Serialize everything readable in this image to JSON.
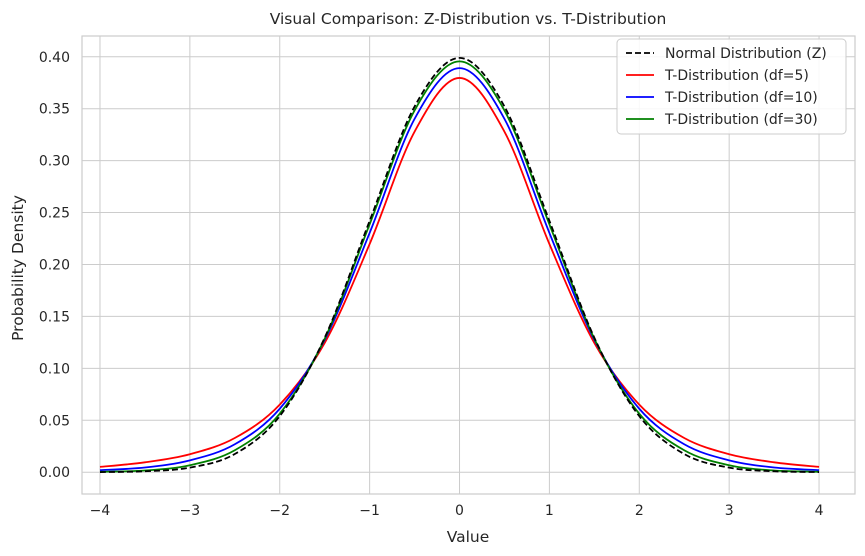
{
  "chart_data": {
    "type": "line",
    "title": "Visual Comparison: Z-Distribution vs. T-Distribution",
    "xlabel": "Value",
    "ylabel": "Probability Density",
    "xlim": [
      -4.2,
      4.4
    ],
    "ylim": [
      -0.021,
      0.42
    ],
    "xticks": [
      -4,
      -3,
      -2,
      -1,
      0,
      1,
      2,
      3,
      4
    ],
    "xtick_labels": [
      "−4",
      "−3",
      "−2",
      "−1",
      "0",
      "1",
      "2",
      "3",
      "4"
    ],
    "yticks": [
      0.0,
      0.05,
      0.1,
      0.15,
      0.2,
      0.25,
      0.3,
      0.35,
      0.4
    ],
    "ytick_labels": [
      "0.00",
      "0.05",
      "0.10",
      "0.15",
      "0.20",
      "0.25",
      "0.30",
      "0.35",
      "0.40"
    ],
    "grid": true,
    "legend_position": "top-right",
    "x": [
      -4.0,
      -3.5,
      -3.0,
      -2.5,
      -2.0,
      -1.5,
      -1.0,
      -0.5,
      0.0,
      0.5,
      1.0,
      1.5,
      2.0,
      2.5,
      3.0,
      3.5,
      4.0
    ],
    "series": [
      {
        "name": "Normal Distribution (Z)",
        "color": "#000000",
        "dash": "dashed",
        "values": [
          0.0001,
          0.0009,
          0.0044,
          0.0175,
          0.054,
          0.1295,
          0.242,
          0.3521,
          0.3989,
          0.3521,
          0.242,
          0.1295,
          0.054,
          0.0175,
          0.0044,
          0.0009,
          0.0001
        ]
      },
      {
        "name": "T-Distribution (df=5)",
        "color": "#ff0000",
        "dash": "solid",
        "values": [
          0.0051,
          0.0095,
          0.0173,
          0.0329,
          0.0651,
          0.1245,
          0.2197,
          0.3279,
          0.3796,
          0.3279,
          0.2197,
          0.1245,
          0.0651,
          0.0329,
          0.0173,
          0.0095,
          0.0051
        ]
      },
      {
        "name": "T-Distribution (df=10)",
        "color": "#0000ff",
        "dash": "solid",
        "values": [
          0.002,
          0.0045,
          0.0114,
          0.0269,
          0.0611,
          0.1274,
          0.2304,
          0.3402,
          0.3891,
          0.3402,
          0.2304,
          0.1274,
          0.0611,
          0.0269,
          0.0114,
          0.0045,
          0.002
        ]
      },
      {
        "name": "T-Distribution (df=30)",
        "color": "#008000",
        "dash": "solid",
        "values": [
          0.0004,
          0.0016,
          0.0067,
          0.0211,
          0.0563,
          0.1285,
          0.2387,
          0.3483,
          0.3956,
          0.3483,
          0.2387,
          0.1285,
          0.0563,
          0.0211,
          0.0067,
          0.0016,
          0.0004
        ]
      }
    ]
  }
}
